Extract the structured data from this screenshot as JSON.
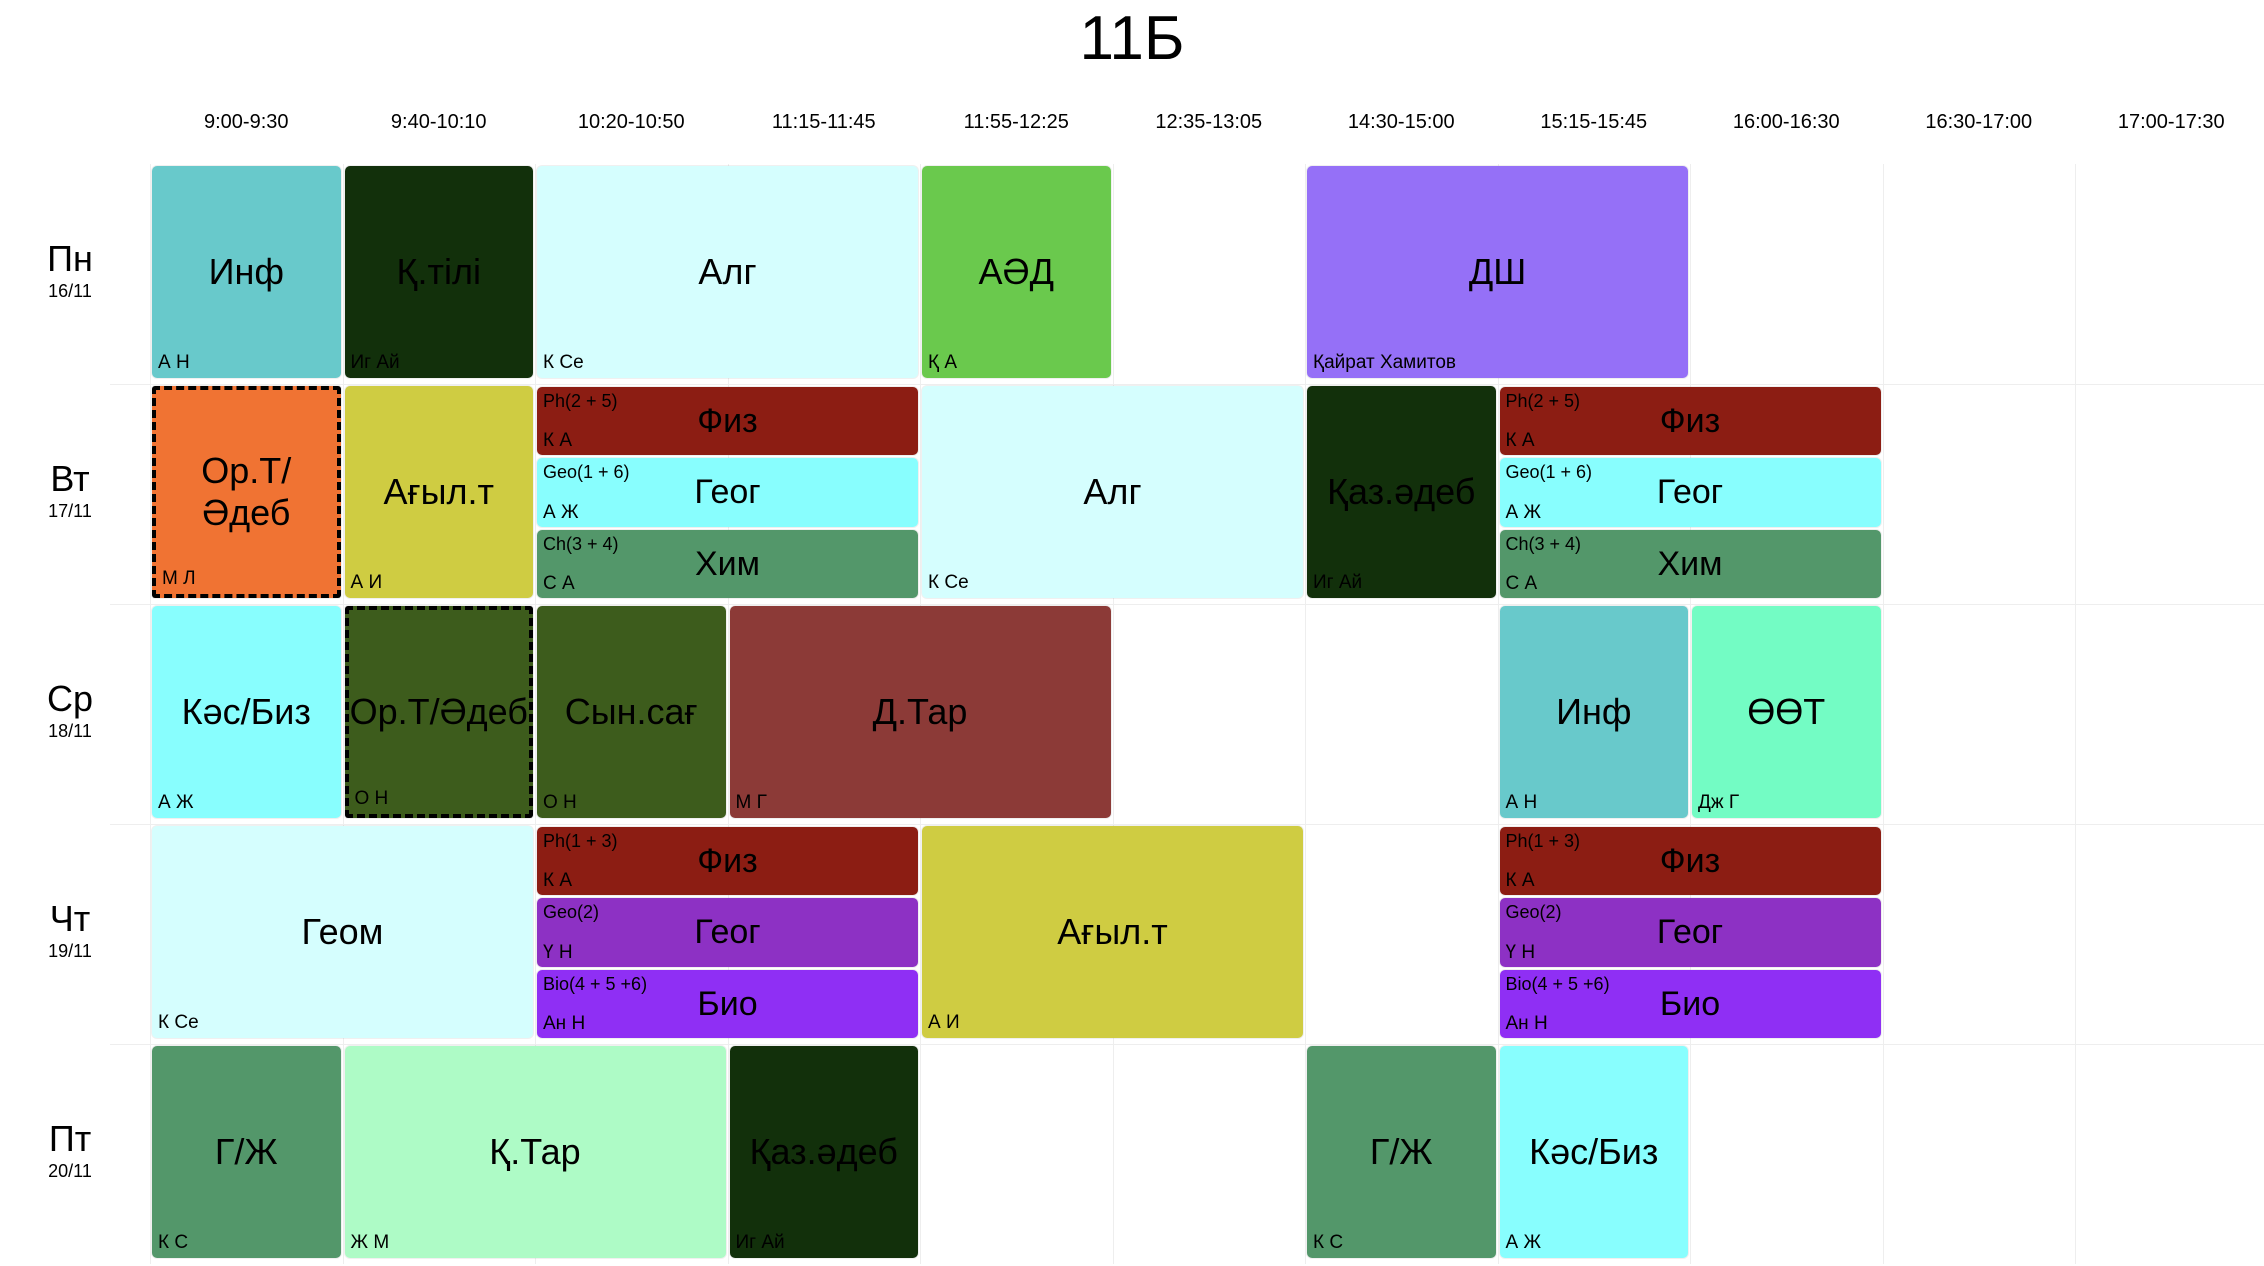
{
  "title": "11Б",
  "times": [
    "9:00-9:30",
    "9:40-10:10",
    "10:20-10:50",
    "11:15-11:45",
    "11:55-12:25",
    "12:35-13:05",
    "14:30-15:00",
    "15:15-15:45",
    "16:00-16:30",
    "16:30-17:00",
    "17:00-17:30"
  ],
  "days": [
    {
      "name": "Пн",
      "date": "16/11"
    },
    {
      "name": "Вт",
      "date": "17/11"
    },
    {
      "name": "Ср",
      "date": "18/11"
    },
    {
      "name": "Чт",
      "date": "19/11"
    },
    {
      "name": "Пт",
      "date": "20/11"
    }
  ],
  "lessons": [
    {
      "day": 0,
      "start": 0,
      "span": 1,
      "subject": "Инф",
      "teacher": "А Н",
      "color": "#68c9cb"
    },
    {
      "day": 0,
      "start": 1,
      "span": 1,
      "subject": "Қ.тілі",
      "teacher": "Иг Ай",
      "color": "#12300b"
    },
    {
      "day": 0,
      "start": 2,
      "span": 2,
      "subject": "Алг",
      "teacher": "К Се",
      "color": "#d5fefe"
    },
    {
      "day": 0,
      "start": 4,
      "span": 1,
      "subject": "АӘД",
      "teacher": "Қ А",
      "color": "#6ac94d"
    },
    {
      "day": 0,
      "start": 6,
      "span": 2,
      "subject": "ДШ",
      "teacher": "Қайрат Хамитов",
      "color": "#9570f7"
    },
    {
      "day": 1,
      "start": 0,
      "span": 1,
      "subject": "Ор.Т/\nӘдеб",
      "teacher": "М Л",
      "color": "#f07333",
      "dashed": true
    },
    {
      "day": 1,
      "start": 1,
      "span": 1,
      "subject": "Ағыл.т",
      "teacher": "А И",
      "color": "#cfcc42"
    },
    {
      "day": 1,
      "start": 2,
      "span": 2,
      "sub": 0,
      "subject": "Физ",
      "group": "Ph(2 + 5)",
      "teacher": "К А",
      "color": "#8c1d13"
    },
    {
      "day": 1,
      "start": 2,
      "span": 2,
      "sub": 1,
      "subject": "Геог",
      "group": "Geo(1 + 6)",
      "teacher": "А Ж",
      "color": "#88fefe"
    },
    {
      "day": 1,
      "start": 2,
      "span": 2,
      "sub": 2,
      "subject": "Хим",
      "group": "Ch(3 + 4)",
      "teacher": "С А",
      "color": "#53976a"
    },
    {
      "day": 1,
      "start": 4,
      "span": 2,
      "subject": "Алг",
      "teacher": "К Се",
      "color": "#d5fefe"
    },
    {
      "day": 1,
      "start": 6,
      "span": 1,
      "subject": "Қаз.әдеб",
      "teacher": "Иг Ай",
      "color": "#12300b"
    },
    {
      "day": 1,
      "start": 7,
      "span": 2,
      "sub": 0,
      "subject": "Физ",
      "group": "Ph(2 + 5)",
      "teacher": "К А",
      "color": "#8c1d13"
    },
    {
      "day": 1,
      "start": 7,
      "span": 2,
      "sub": 1,
      "subject": "Геог",
      "group": "Geo(1 + 6)",
      "teacher": "А Ж",
      "color": "#88fefe"
    },
    {
      "day": 1,
      "start": 7,
      "span": 2,
      "sub": 2,
      "subject": "Хим",
      "group": "Ch(3 + 4)",
      "teacher": "С А",
      "color": "#53976a"
    },
    {
      "day": 2,
      "start": 0,
      "span": 1,
      "subject": "Кәс/Биз",
      "teacher": "А Ж",
      "color": "#88fefe"
    },
    {
      "day": 2,
      "start": 1,
      "span": 1,
      "subject": "Ор.Т/Әдеб",
      "teacher": "О Н",
      "color": "#3d5c1c",
      "dashed": true
    },
    {
      "day": 2,
      "start": 2,
      "span": 1,
      "subject": "Сын.сағ",
      "teacher": "О Н",
      "color": "#3d5c1c"
    },
    {
      "day": 2,
      "start": 3,
      "span": 2,
      "subject": "Д.Тар",
      "teacher": "М Г",
      "color": "#8c3a37"
    },
    {
      "day": 2,
      "start": 7,
      "span": 1,
      "subject": "Инф",
      "teacher": "А Н",
      "color": "#68c9cb"
    },
    {
      "day": 2,
      "start": 8,
      "span": 1,
      "subject": "ӨӨТ",
      "teacher": "Дж Г",
      "color": "#73fcc4"
    },
    {
      "day": 3,
      "start": 0,
      "span": 2,
      "subject": "Геом",
      "teacher": "К Се",
      "color": "#d5fefe"
    },
    {
      "day": 3,
      "start": 2,
      "span": 2,
      "sub": 0,
      "subject": "Физ",
      "group": "Ph(1 + 3)",
      "teacher": "К А",
      "color": "#8c1d13"
    },
    {
      "day": 3,
      "start": 2,
      "span": 2,
      "sub": 1,
      "subject": "Геог",
      "group": "Geo(2)",
      "teacher": "Ү Н",
      "color": "#8d31c4"
    },
    {
      "day": 3,
      "start": 2,
      "span": 2,
      "sub": 2,
      "subject": "Био",
      "group": "Bio(4 + 5 +6)",
      "teacher": "Ан Н",
      "color": "#8f2ff4"
    },
    {
      "day": 3,
      "start": 4,
      "span": 2,
      "subject": "Ағыл.т",
      "teacher": "А И",
      "color": "#cfcc42"
    },
    {
      "day": 3,
      "start": 7,
      "span": 2,
      "sub": 0,
      "subject": "Физ",
      "group": "Ph(1 + 3)",
      "teacher": "К А",
      "color": "#8c1d13"
    },
    {
      "day": 3,
      "start": 7,
      "span": 2,
      "sub": 1,
      "subject": "Геог",
      "group": "Geo(2)",
      "teacher": "Ү Н",
      "color": "#8d31c4"
    },
    {
      "day": 3,
      "start": 7,
      "span": 2,
      "sub": 2,
      "subject": "Био",
      "group": "Bio(4 + 5 +6)",
      "teacher": "Ан Н",
      "color": "#8f2ff4"
    },
    {
      "day": 4,
      "start": 0,
      "span": 1,
      "subject": "Г/Ж",
      "teacher": "К С",
      "color": "#53976a"
    },
    {
      "day": 4,
      "start": 1,
      "span": 2,
      "subject": "Қ.Тар",
      "teacher": "Ж М",
      "color": "#aefbc6"
    },
    {
      "day": 4,
      "start": 3,
      "span": 1,
      "subject": "Қаз.әдеб",
      "teacher": "Иг Ай",
      "color": "#12300b"
    },
    {
      "day": 4,
      "start": 6,
      "span": 1,
      "subject": "Г/Ж",
      "teacher": "К С",
      "color": "#53976a"
    },
    {
      "day": 4,
      "start": 7,
      "span": 1,
      "subject": "Кәс/Биз",
      "teacher": "А Ж",
      "color": "#88fefe"
    }
  ]
}
